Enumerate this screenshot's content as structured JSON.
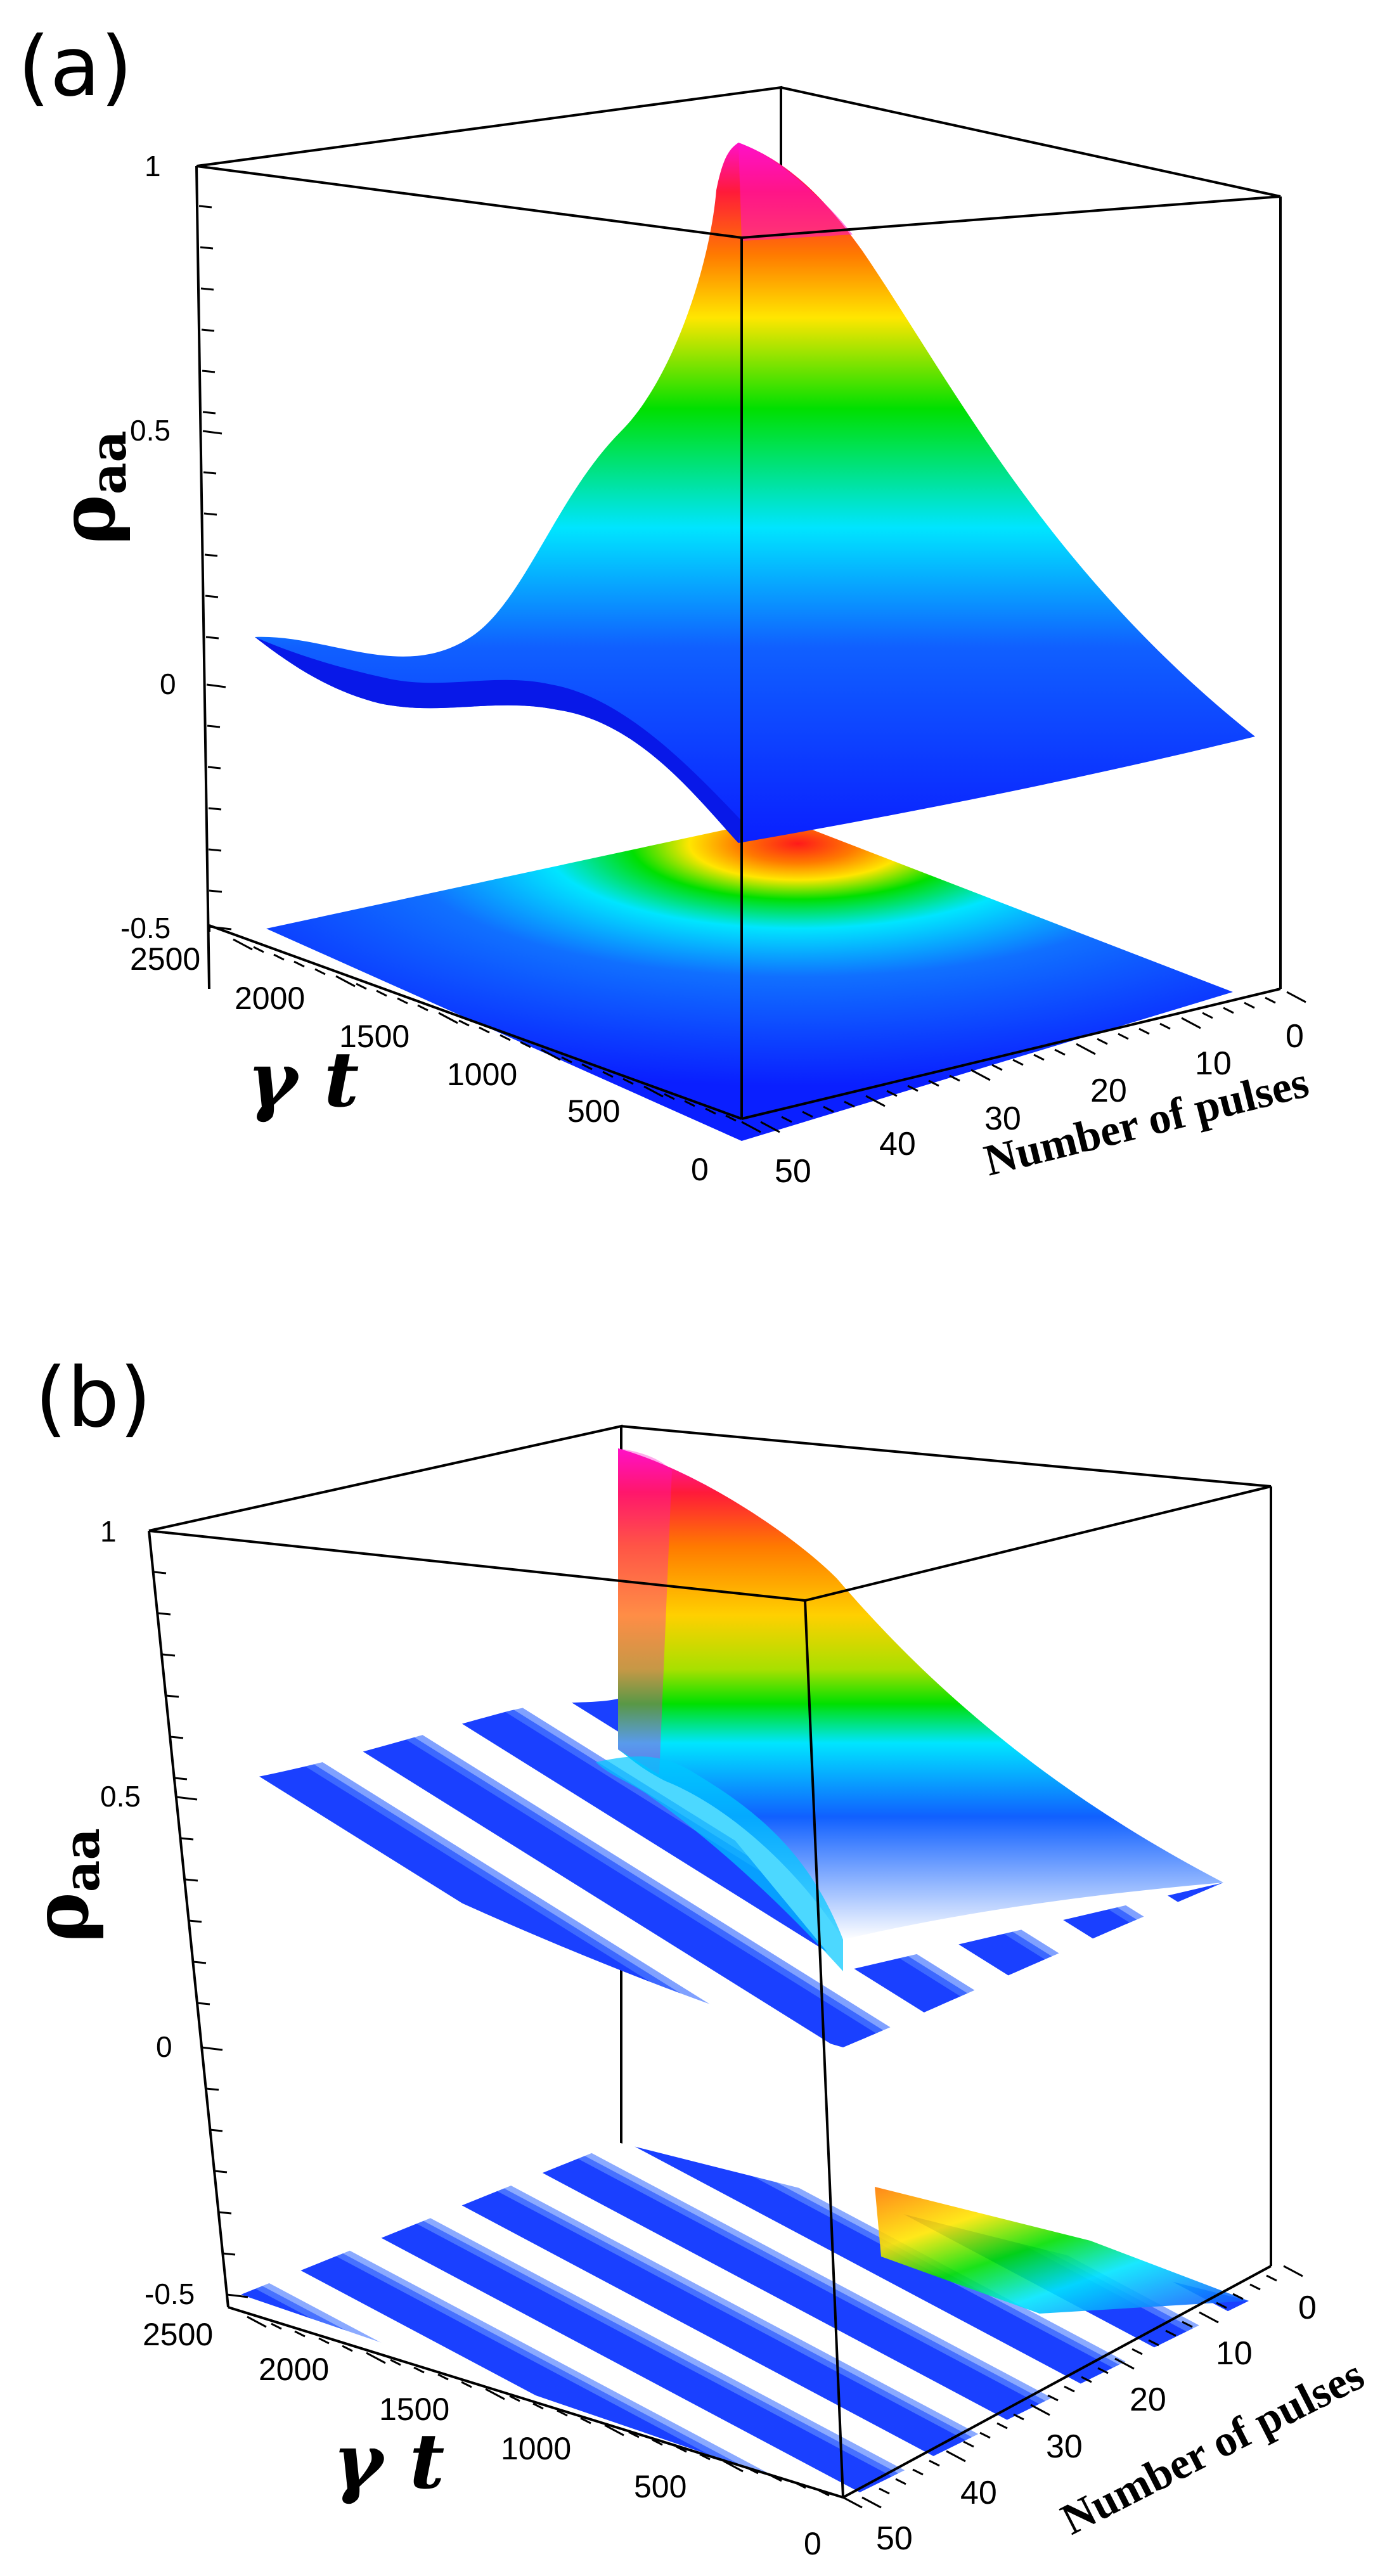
{
  "chart_data": [
    {
      "panel": "(a)",
      "type": "surface3d",
      "zlabel": "ρ_aa",
      "zlabel_main": "ρ",
      "zlabel_sub": "aa",
      "tlabel": "γ t",
      "nlabel": "Number of pulses",
      "z_ticks": [
        "1",
        "0.5",
        "0",
        "-0.5"
      ],
      "t_ticks": [
        "2500",
        "2000",
        "1500",
        "1000",
        "500",
        "0"
      ],
      "n_ticks": [
        "0",
        "10",
        "20",
        "30",
        "40",
        "50"
      ],
      "zlim": [
        -0.5,
        1
      ],
      "tlim": [
        0,
        2500
      ],
      "nlim": [
        0,
        50
      ],
      "colormap": [
        "#0a1fff",
        "#00e5ff",
        "#00e000",
        "#ffe600",
        "#ff7a00",
        "#ff1a1a",
        "#ff10c8"
      ],
      "t_values": [
        0,
        500,
        1000,
        1500,
        2000,
        2500
      ],
      "n_values": [
        0,
        10,
        20,
        30,
        40,
        50
      ],
      "z_values": [
        [
          0.0,
          0.0,
          0.0,
          0.0,
          0.0,
          0.0
        ],
        [
          0.33,
          0.26,
          0.18,
          0.1,
          0.03,
          0.0
        ],
        [
          0.66,
          0.52,
          0.34,
          0.17,
          0.06,
          0.01
        ],
        [
          0.88,
          0.7,
          0.48,
          0.26,
          0.08,
          0.01
        ],
        [
          0.97,
          0.8,
          0.56,
          0.3,
          0.1,
          0.01
        ],
        [
          1.0,
          0.84,
          0.6,
          0.32,
          0.11,
          0.01
        ]
      ],
      "projection_plane": -0.5
    },
    {
      "panel": "(b)",
      "type": "surface3d",
      "zlabel": "ρ_aa",
      "zlabel_main": "ρ",
      "zlabel_sub": "aa",
      "tlabel": "γ t",
      "nlabel": "Number of pulses",
      "z_ticks": [
        "1",
        "0.5",
        "0",
        "-0.5"
      ],
      "t_ticks": [
        "2500",
        "2000",
        "1500",
        "1000",
        "500",
        "0"
      ],
      "n_ticks": [
        "0",
        "10",
        "20",
        "30",
        "40",
        "50"
      ],
      "zlim": [
        -0.5,
        1
      ],
      "tlim": [
        0,
        2500
      ],
      "nlim": [
        0,
        50
      ],
      "colormap": [
        "#ffffff",
        "#0a1fff",
        "#00e5ff",
        "#00e000",
        "#ffe600",
        "#ff7a00",
        "#ff1a1a",
        "#ff10c8"
      ],
      "t_values": [
        0,
        500,
        1000,
        1500,
        2000,
        2500
      ],
      "n_values": [
        0,
        10,
        20,
        30,
        40,
        50
      ],
      "z_values": [
        [
          0.0,
          0.0,
          0.0,
          0.0,
          0.0,
          0.0
        ],
        [
          0.33,
          0.08,
          0.05,
          0.03,
          0.02,
          0.01
        ],
        [
          0.66,
          0.25,
          0.07,
          0.04,
          0.03,
          0.02
        ],
        [
          0.88,
          0.45,
          0.09,
          0.05,
          0.04,
          0.03
        ],
        [
          0.97,
          0.6,
          0.12,
          0.06,
          0.05,
          0.04
        ],
        [
          1.0,
          0.7,
          0.15,
          0.07,
          0.05,
          0.04
        ]
      ],
      "projection_plane": -0.5
    }
  ]
}
